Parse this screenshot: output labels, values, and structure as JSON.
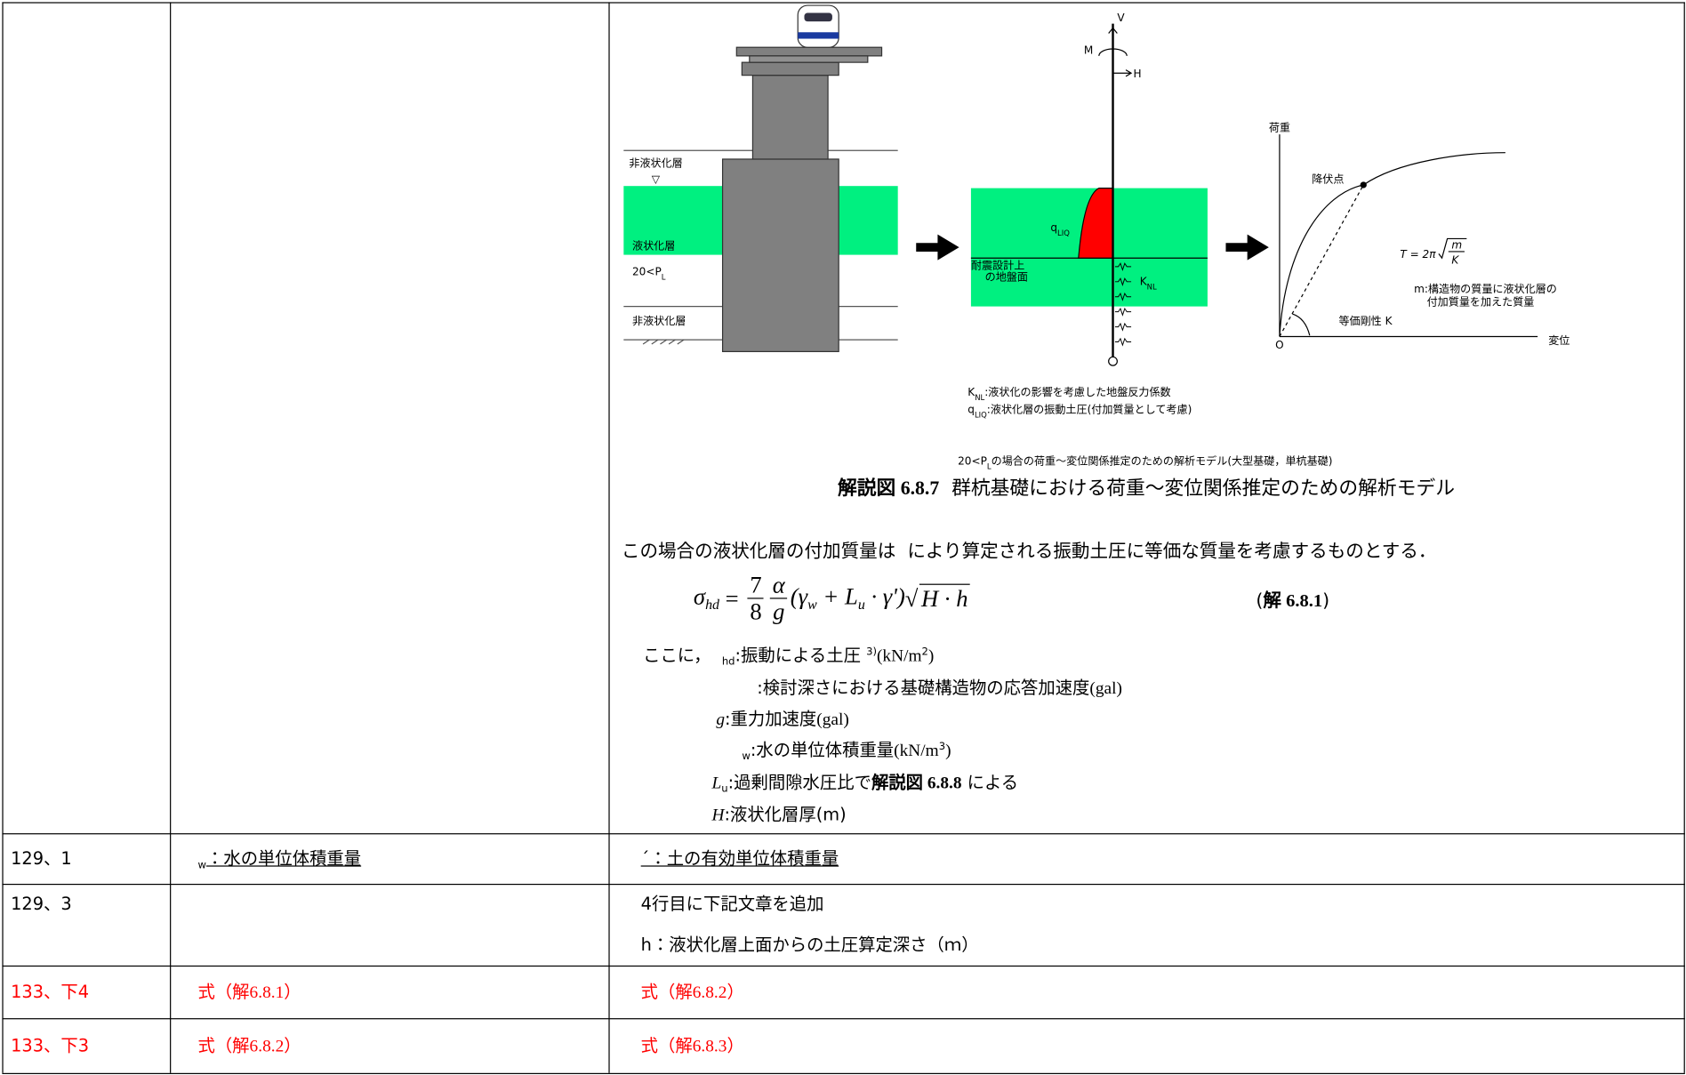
{
  "table": {
    "rows": [
      {
        "corrected": {
          "figure": {
            "top_label": "非液状化層",
            "water": "▽",
            "liq_label": "液状化層",
            "pl_label": [
              {
                "text": "20<P"
              },
              {
                "text": "L",
                "style": "sub"
              }
            ],
            "bottom_label": "非液状化層",
            "m": "M",
            "v": "V",
            "h": "H",
            "q": [
              {
                "text": "q"
              },
              {
                "text": "LIQ",
                "style": "sub"
              }
            ],
            "ground": [
              "耐震設計上",
              "の地盤面"
            ],
            "k": [
              {
                "text": "K"
              },
              {
                "text": "NL",
                "style": "sub"
              }
            ],
            "load": "荷重",
            "yield": "降伏点",
            "period": {
              "lhs": "T = 2π",
              "num": "m",
              "den": "K"
            },
            "mass": [
              "m:構造物の質量に液状化層の",
              "付加質量を加えた質量"
            ],
            "stiffness": "等価剛性 K",
            "origin": "O",
            "disp": "変位",
            "notes": [
              [
                {
                  "text": "K"
                },
                {
                  "text": "NL",
                  "style": "sub"
                },
                {
                  "text": ":液状化の影響を考慮した地盤反力係数"
                }
              ],
              [
                {
                  "text": "q"
                },
                {
                  "text": "LIQ",
                  "style": "sub"
                },
                {
                  "text": ":液状化層の振動土圧(付加質量として考慮)"
                }
              ]
            ]
          },
          "caption_small": [
            {
              "text": "20<P"
            },
            {
              "text": "L",
              "style": "sub"
            },
            {
              "text": "の場合の荷重～変位関係推定のための解析モデル(大型基礎，単杭基礎)"
            }
          ],
          "caption": [
            {
              "text": "解説図",
              "style": "boldg"
            },
            {
              "text": " 6.8.7",
              "style": "bold"
            },
            {
              "text": "  群杭基礎における荷重～変位関係推定のための解析モデル"
            }
          ],
          "paragraph": "この場合の液状化層の付加質量は  により算定される振動土圧に等価な質量を考慮するものとする．",
          "equation": {
            "lhs": "σ",
            "lhs_sub": "hd",
            "eq": " = ",
            "frac1": [
              "7",
              "8"
            ],
            "frac2": [
              "α",
              "g"
            ],
            "body": [
              {
                "text": "(γ"
              },
              {
                "text": "w",
                "style": "sub"
              },
              {
                "text": " + L"
              },
              {
                "text": "u",
                "style": "sub"
              },
              {
                "text": " · γ')"
              }
            ],
            "root": "√",
            "radicand": "H · h"
          },
          "equation_label": [
            {
              "text": "("
            },
            {
              "text": "解",
              "style": "boldg"
            },
            {
              "text": " 6.8.1",
              "style": "bold"
            },
            {
              "text": ")"
            }
          ],
          "definitions": [
            [
              {
                "text": "ここに，  "
              },
              {
                "text": "hd",
                "style": "sub"
              },
              {
                "text": ":振動による土圧 "
              },
              {
                "text": "3)",
                "style": "sup"
              },
              {
                "text": "(kN/m",
                "style": "serif"
              },
              {
                "text": "2",
                "style": "sup"
              },
              {
                "text": ")",
                "style": "serif"
              }
            ],
            [
              {
                "text": ":検討深さにおける基礎構造物の応答加速度"
              },
              {
                "text": "(gal)",
                "style": "serif"
              }
            ],
            [
              {
                "text": "g",
                "style": "italic"
              },
              {
                "text": ":重力加速度"
              },
              {
                "text": "(gal)",
                "style": "serif"
              }
            ],
            [
              {
                "text": "w",
                "style": "sub"
              },
              {
                "text": ":水の単位体積重量"
              },
              {
                "text": "(kN/m",
                "style": "serif"
              },
              {
                "text": "3",
                "style": "sup"
              },
              {
                "text": ")",
                "style": "serif"
              }
            ],
            [
              {
                "text": "L",
                "style": "italic"
              },
              {
                "text": "u",
                "style": "sub"
              },
              {
                "text": ":過剰間隙水圧比で"
              },
              {
                "text": "解説図",
                "style": "boldg"
              },
              {
                "text": " 6.8.8",
                "style": "bold"
              },
              {
                "text": " による"
              }
            ],
            [
              {
                "text": "H",
                "style": "italic"
              },
              {
                "text": ":液状化層厚(m)"
              }
            ]
          ]
        }
      },
      {
        "location": "129、1",
        "underline": true,
        "original": [
          [
            {
              "text": "w",
              "style": "sub"
            },
            {
              "text": "：水の単位体積重量"
            }
          ]
        ],
        "corrected": [
          [
            {
              "text": "´：土の有効単位体積重量"
            }
          ]
        ]
      },
      {
        "location": "129、3",
        "corrected": [
          [
            {
              "text": "4行目に下記文章を追加"
            }
          ],
          [
            {
              "text": "h：液状化層上面からの土圧算定深さ（ｍ）"
            }
          ]
        ]
      },
      {
        "location": "133、下4",
        "color": "#ff0000",
        "original": [
          [
            {
              "text": "式（解"
            },
            {
              "text": "6.8.1",
              "style": "serif"
            },
            {
              "text": "）"
            }
          ]
        ],
        "corrected": [
          [
            {
              "text": "式（解"
            },
            {
              "text": "6.8.2",
              "style": "serif"
            },
            {
              "text": "）"
            }
          ]
        ]
      },
      {
        "location": "133、下3",
        "color": "#ff0000",
        "original": [
          [
            {
              "text": "式（解"
            },
            {
              "text": "6.8.2",
              "style": "serif"
            },
            {
              "text": "）"
            }
          ]
        ],
        "corrected": [
          [
            {
              "text": "式（解"
            },
            {
              "text": "6.8.3",
              "style": "serif"
            },
            {
              "text": "）"
            }
          ]
        ]
      }
    ]
  }
}
